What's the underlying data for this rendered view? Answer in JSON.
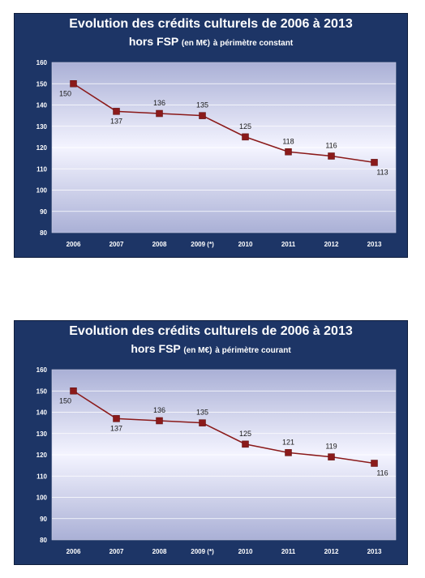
{
  "chart_data": [
    {
      "type": "line",
      "title_main": "Evolution des crédits culturels de 2006 à 2013",
      "title_prefix": "hors FSP",
      "title_small": "(en M€)",
      "title_suffix": "à périmètre constant",
      "categories": [
        "2006",
        "2007",
        "2008",
        "2009 (*)",
        "2010",
        "2011",
        "2012",
        "2013"
      ],
      "values": [
        150,
        137,
        136,
        135,
        125,
        118,
        116,
        113
      ],
      "data_labels": [
        "150",
        "137",
        "136",
        "135",
        "125",
        "118",
        "116",
        "113"
      ],
      "y_ticks": [
        "80",
        "90",
        "100",
        "110",
        "120",
        "130",
        "140",
        "150",
        "160"
      ],
      "ylim": [
        80,
        160
      ],
      "grid": true,
      "colors": {
        "background": "#1d3566",
        "plot_top": "#aab0d6",
        "plot_mid": "#f4f4ff",
        "line": "#8b1a1a",
        "marker": "#8b1a1a"
      }
    },
    {
      "type": "line",
      "title_main": "Evolution des crédits culturels de 2006 à 2013",
      "title_prefix": "hors FSP",
      "title_small": "(en M€)",
      "title_suffix": "à périmètre courant",
      "categories": [
        "2006",
        "2007",
        "2008",
        "2009 (*)",
        "2010",
        "2011",
        "2012",
        "2013"
      ],
      "values": [
        150,
        137,
        136,
        135,
        125,
        121,
        119,
        116
      ],
      "data_labels": [
        "150",
        "137",
        "136",
        "135",
        "125",
        "121",
        "119",
        "116"
      ],
      "y_ticks": [
        "80",
        "90",
        "100",
        "110",
        "120",
        "130",
        "140",
        "150",
        "160"
      ],
      "ylim": [
        80,
        160
      ],
      "grid": true,
      "colors": {
        "background": "#1d3566",
        "plot_top": "#aab0d6",
        "plot_mid": "#f4f4ff",
        "line": "#8b1a1a",
        "marker": "#8b1a1a"
      }
    }
  ]
}
